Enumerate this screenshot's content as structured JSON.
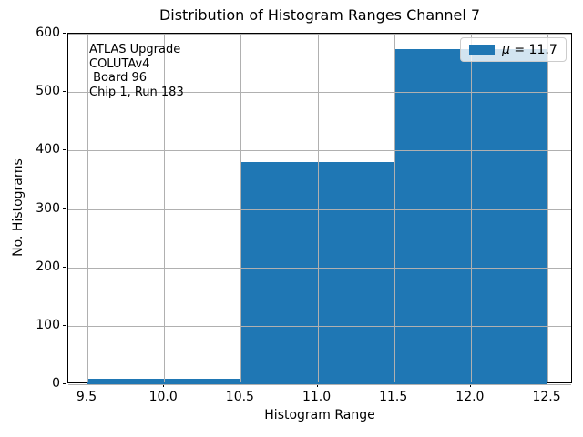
{
  "chart_data": {
    "type": "bar",
    "title": "Distribution of Histogram Ranges Channel 7",
    "xlabel": "Histogram Range",
    "ylabel": "No. Histograms",
    "bin_edges": [
      9.5,
      10.5,
      11.5,
      12.5
    ],
    "values": [
      10,
      380,
      573
    ],
    "x_ticks": [
      9.5,
      10.0,
      10.5,
      11.0,
      11.5,
      12.0,
      12.5
    ],
    "x_tick_labels": [
      "9.5",
      "10.0",
      "10.5",
      "11.0",
      "11.5",
      "12.0",
      "12.5"
    ],
    "y_ticks": [
      0,
      100,
      200,
      300,
      400,
      500,
      600
    ],
    "y_tick_labels": [
      "0",
      "100",
      "200",
      "300",
      "400",
      "500",
      "600"
    ],
    "xlim": [
      9.375,
      12.666
    ],
    "ylim": [
      0,
      600
    ],
    "grid": true,
    "grid_on_top": true,
    "grid_color": "#b0b0b0",
    "bar_color": "#1f77b4",
    "legend": {
      "position": "upper right",
      "symbol": "μ",
      "rest": " = 11.7",
      "swatch_color": "#1f77b4"
    },
    "annotation_lines": [
      "ATLAS Upgrade",
      "COLUTAv4",
      " Board 96",
      "Chip 1, Run 183"
    ]
  }
}
